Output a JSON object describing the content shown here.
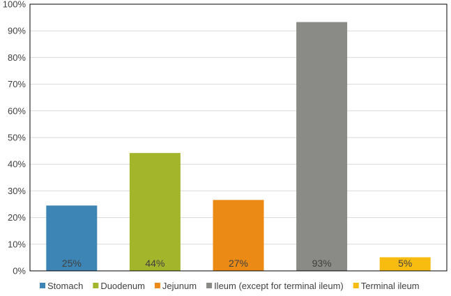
{
  "chart_data": {
    "type": "bar",
    "title": "",
    "xlabel": "",
    "ylabel": "",
    "ylim": [
      0,
      100
    ],
    "yticks": [
      "0%",
      "10%",
      "20%",
      "30%",
      "40%",
      "50%",
      "60%",
      "70%",
      "80%",
      "90%",
      "100%"
    ],
    "grid": true,
    "legend_position": "bottom",
    "categories": [
      "Stomach",
      "Duodenum",
      "Jejunum",
      "Ileum (except for terminal ileum)",
      "Terminal ileum"
    ],
    "values": [
      24.5,
      44.2,
      26.6,
      93.3,
      5.1
    ],
    "data_labels": [
      "25%",
      "44%",
      "27%",
      "93%",
      "5%"
    ],
    "colors": [
      "#3D85B5",
      "#A3B52B",
      "#EC8A16",
      "#8A8A86",
      "#F7BC0F"
    ]
  }
}
